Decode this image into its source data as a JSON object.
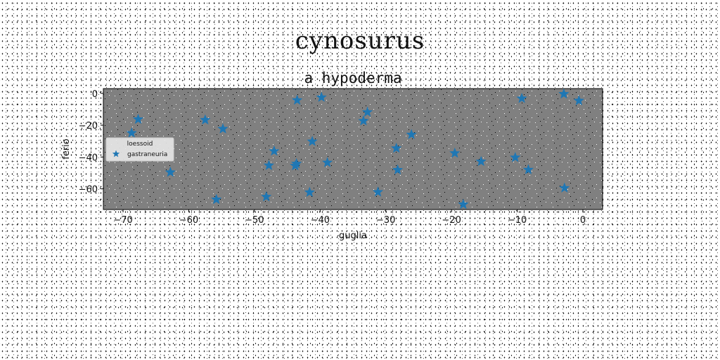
{
  "main_title": "cynosurus",
  "chart_data": {
    "type": "scatter",
    "title": "a hypoderma",
    "xlabel": "guglia",
    "ylabel": "ferio",
    "xlim": [
      -73,
      3
    ],
    "ylim": [
      -73,
      3
    ],
    "xticks": [
      -70,
      -60,
      -50,
      -40,
      -30,
      -20,
      -10,
      0
    ],
    "yticks": [
      0,
      -20,
      -40,
      -60
    ],
    "grid": false,
    "legend": {
      "title": "loessoid",
      "placement": "center-left"
    },
    "series": [
      {
        "name": "gastraneuria",
        "marker": "star",
        "color": "#1f77b4",
        "points": [
          {
            "x": -68.7,
            "y": -24.9
          },
          {
            "x": -67.7,
            "y": -16.3
          },
          {
            "x": -62.8,
            "y": -49.6
          },
          {
            "x": -57.5,
            "y": -16.7
          },
          {
            "x": -54.8,
            "y": -22.3
          },
          {
            "x": -55.8,
            "y": -66.7
          },
          {
            "x": -48.2,
            "y": -65.0
          },
          {
            "x": -47.8,
            "y": -45.3
          },
          {
            "x": -47.0,
            "y": -36.3
          },
          {
            "x": -43.8,
            "y": -45.5
          },
          {
            "x": -43.6,
            "y": -44.2
          },
          {
            "x": -43.5,
            "y": -4.3
          },
          {
            "x": -41.6,
            "y": -62.2
          },
          {
            "x": -41.2,
            "y": -30.2
          },
          {
            "x": -39.8,
            "y": -2.5
          },
          {
            "x": -38.9,
            "y": -43.5
          },
          {
            "x": -33.4,
            "y": -17.3
          },
          {
            "x": -32.8,
            "y": -11.8
          },
          {
            "x": -31.2,
            "y": -62.0
          },
          {
            "x": -28.4,
            "y": -34.5
          },
          {
            "x": -28.2,
            "y": -48.1
          },
          {
            "x": -26.1,
            "y": -25.9
          },
          {
            "x": -18.2,
            "y": -69.8
          },
          {
            "x": -19.5,
            "y": -37.6
          },
          {
            "x": -15.5,
            "y": -42.8
          },
          {
            "x": -10.3,
            "y": -40.3
          },
          {
            "x": -9.3,
            "y": -3.2
          },
          {
            "x": -8.3,
            "y": -48.0
          },
          {
            "x": -2.8,
            "y": -59.5
          },
          {
            "x": -2.9,
            "y": -0.4
          },
          {
            "x": -0.6,
            "y": -4.6
          }
        ]
      }
    ]
  }
}
